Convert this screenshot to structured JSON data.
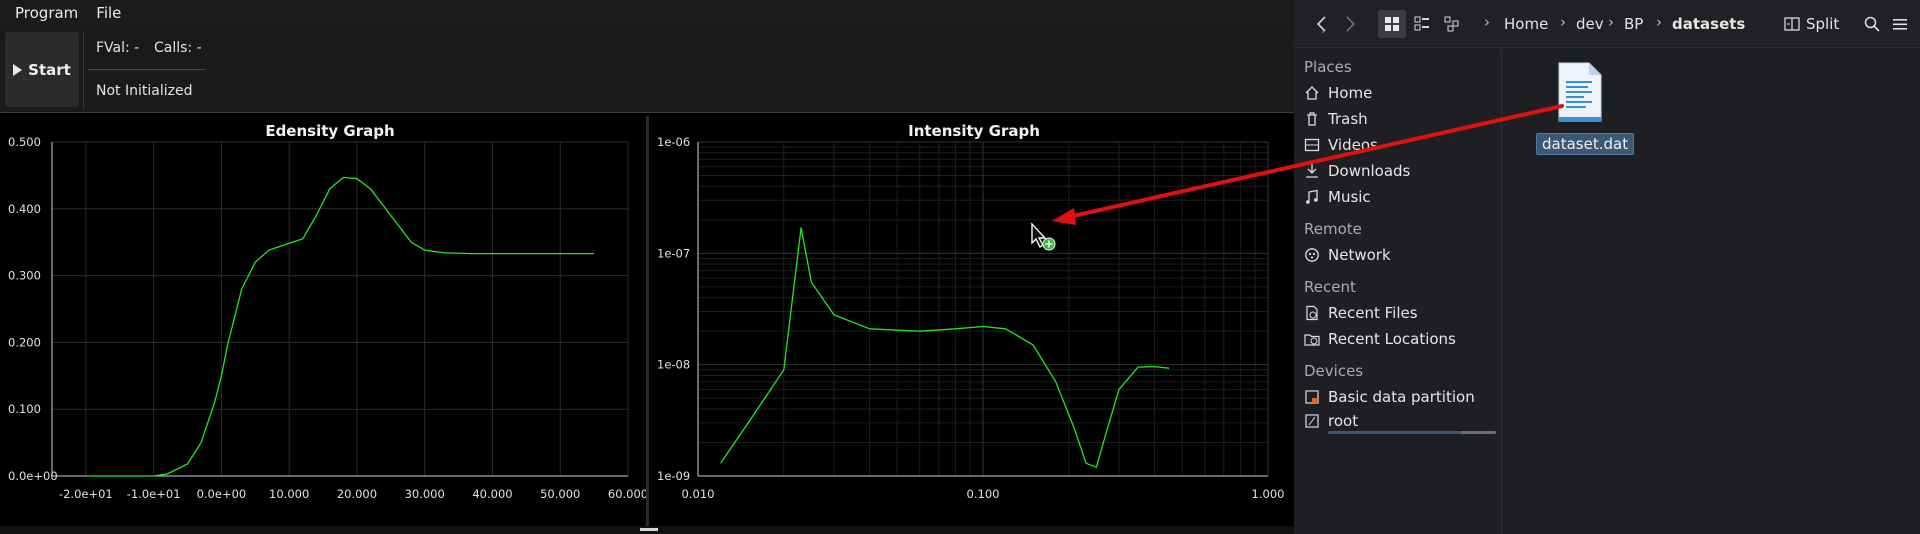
{
  "app": {
    "menu": [
      "Program",
      "File"
    ],
    "start_label": "Start",
    "fval": "FVal: -",
    "calls": "Calls: -",
    "status": "Not Initialized"
  },
  "graphs": {
    "edensity": {
      "title": "Edensity Graph",
      "x_ticks": [
        "-2.0e+01",
        "-1.0e+01",
        "0.0e+00",
        "10.000",
        "20.000",
        "30.000",
        "40.000",
        "50.000",
        "60.000"
      ],
      "y_ticks": [
        "0.0e+00",
        "0.100",
        "0.200",
        "0.300",
        "0.400",
        "0.500"
      ]
    },
    "intensity": {
      "title": "Intensity Graph",
      "x_ticks": [
        "0.010",
        "0.100",
        "1.000"
      ],
      "y_ticks": [
        "1e-09",
        "1e-08",
        "1e-07",
        "1e-06"
      ]
    },
    "line_color": "#22e622"
  },
  "chart_data": [
    {
      "type": "line",
      "title": "Edensity Graph",
      "xlim": [
        -25,
        60
      ],
      "ylim": [
        0,
        0.5
      ],
      "grid": true,
      "x": [
        -20,
        -10,
        -8,
        -5,
        -3,
        -1,
        0,
        1,
        2,
        3,
        5,
        7,
        9,
        12,
        14,
        16,
        18,
        20,
        22,
        25,
        28,
        30,
        33,
        37,
        45,
        55
      ],
      "y": [
        0.0,
        0.0,
        0.003,
        0.018,
        0.05,
        0.11,
        0.15,
        0.2,
        0.24,
        0.28,
        0.32,
        0.338,
        0.345,
        0.355,
        0.39,
        0.43,
        0.447,
        0.445,
        0.43,
        0.39,
        0.35,
        0.338,
        0.334,
        0.333,
        0.333,
        0.333
      ]
    },
    {
      "type": "line",
      "title": "Intensity Graph",
      "x_scale": "log",
      "y_scale": "log",
      "xlim": [
        0.01,
        1.0
      ],
      "ylim": [
        1e-09,
        1e-06
      ],
      "grid": true,
      "x": [
        0.012,
        0.015,
        0.02,
        0.023,
        0.025,
        0.03,
        0.04,
        0.06,
        0.08,
        0.1,
        0.12,
        0.15,
        0.18,
        0.21,
        0.23,
        0.25,
        0.27,
        0.3,
        0.35,
        0.4,
        0.45
      ],
      "y": [
        1.3e-09,
        3e-09,
        9e-09,
        1.7e-07,
        5.5e-08,
        2.8e-08,
        2.1e-08,
        2e-08,
        2.1e-08,
        2.2e-08,
        2.1e-08,
        1.5e-08,
        7e-09,
        2.6e-09,
        1.3e-09,
        1.2e-09,
        2.4e-09,
        6e-09,
        9.5e-09,
        9.6e-09,
        9.3e-09
      ]
    }
  ],
  "file_manager": {
    "breadcrumbs": [
      "Home",
      "dev",
      "BP",
      "datasets"
    ],
    "split_label": "Split",
    "sidebar": {
      "places_header": "Places",
      "places": [
        "Home",
        "Trash",
        "Videos",
        "Downloads",
        "Music"
      ],
      "remote_header": "Remote",
      "remote": [
        "Network"
      ],
      "recent_header": "Recent",
      "recent": [
        "Recent Files",
        "Recent Locations"
      ],
      "devices_header": "Devices",
      "devices": [
        "Basic data partition",
        "root"
      ]
    },
    "files": [
      {
        "name": "dataset.dat",
        "icon": "text-file-icon",
        "selected": true
      }
    ]
  },
  "drag": {
    "cursor": "drag-copy-cursor",
    "arrow_color": "#e01010"
  }
}
